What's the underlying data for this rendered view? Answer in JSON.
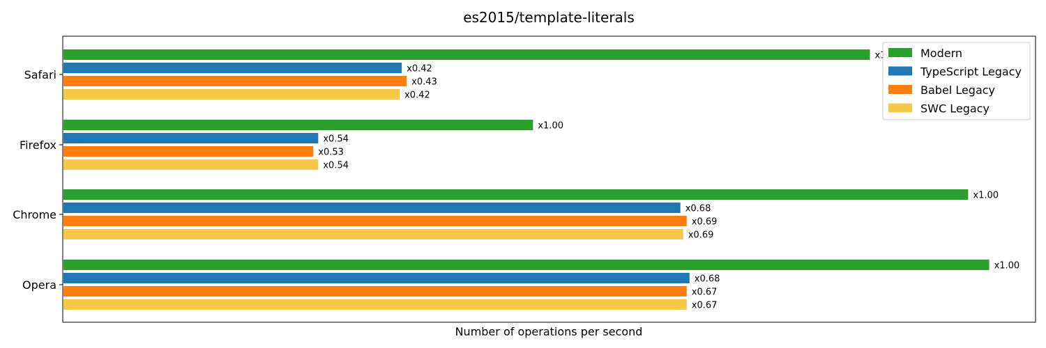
{
  "chart_data": {
    "type": "bar",
    "orientation": "horizontal",
    "title": "es2015/template-literals",
    "xlabel": "Number of operations per second",
    "ylabel": "",
    "categories": [
      "Safari",
      "Firefox",
      "Chrome",
      "Opera"
    ],
    "series": [
      {
        "name": "Modern",
        "color": "#2ca02c",
        "values": [
          1.15,
          0.67,
          1.29,
          1.32
        ],
        "labels": [
          "x1.00",
          "x1.00",
          "x1.00",
          "x1.00"
        ]
      },
      {
        "name": "TypeScript Legacy",
        "color": "#1f77b4",
        "values": [
          0.483,
          0.364,
          0.88,
          0.893
        ],
        "labels": [
          "x0.42",
          "x0.54",
          "x0.68",
          "x0.68"
        ]
      },
      {
        "name": "Babel Legacy",
        "color": "#ff7f0e",
        "values": [
          0.49,
          0.357,
          0.889,
          0.889
        ],
        "labels": [
          "x0.43",
          "x0.53",
          "x0.69",
          "x0.67"
        ]
      },
      {
        "name": "SWC Legacy",
        "color": "#f7c948",
        "values": [
          0.48,
          0.364,
          0.884,
          0.889
        ],
        "labels": [
          "x0.42",
          "x0.54",
          "x0.69",
          "x0.67"
        ]
      }
    ],
    "xlim": [
      0,
      1.386
    ],
    "x_ticks_visible": false,
    "grid": false,
    "legend_position": "top-right"
  }
}
